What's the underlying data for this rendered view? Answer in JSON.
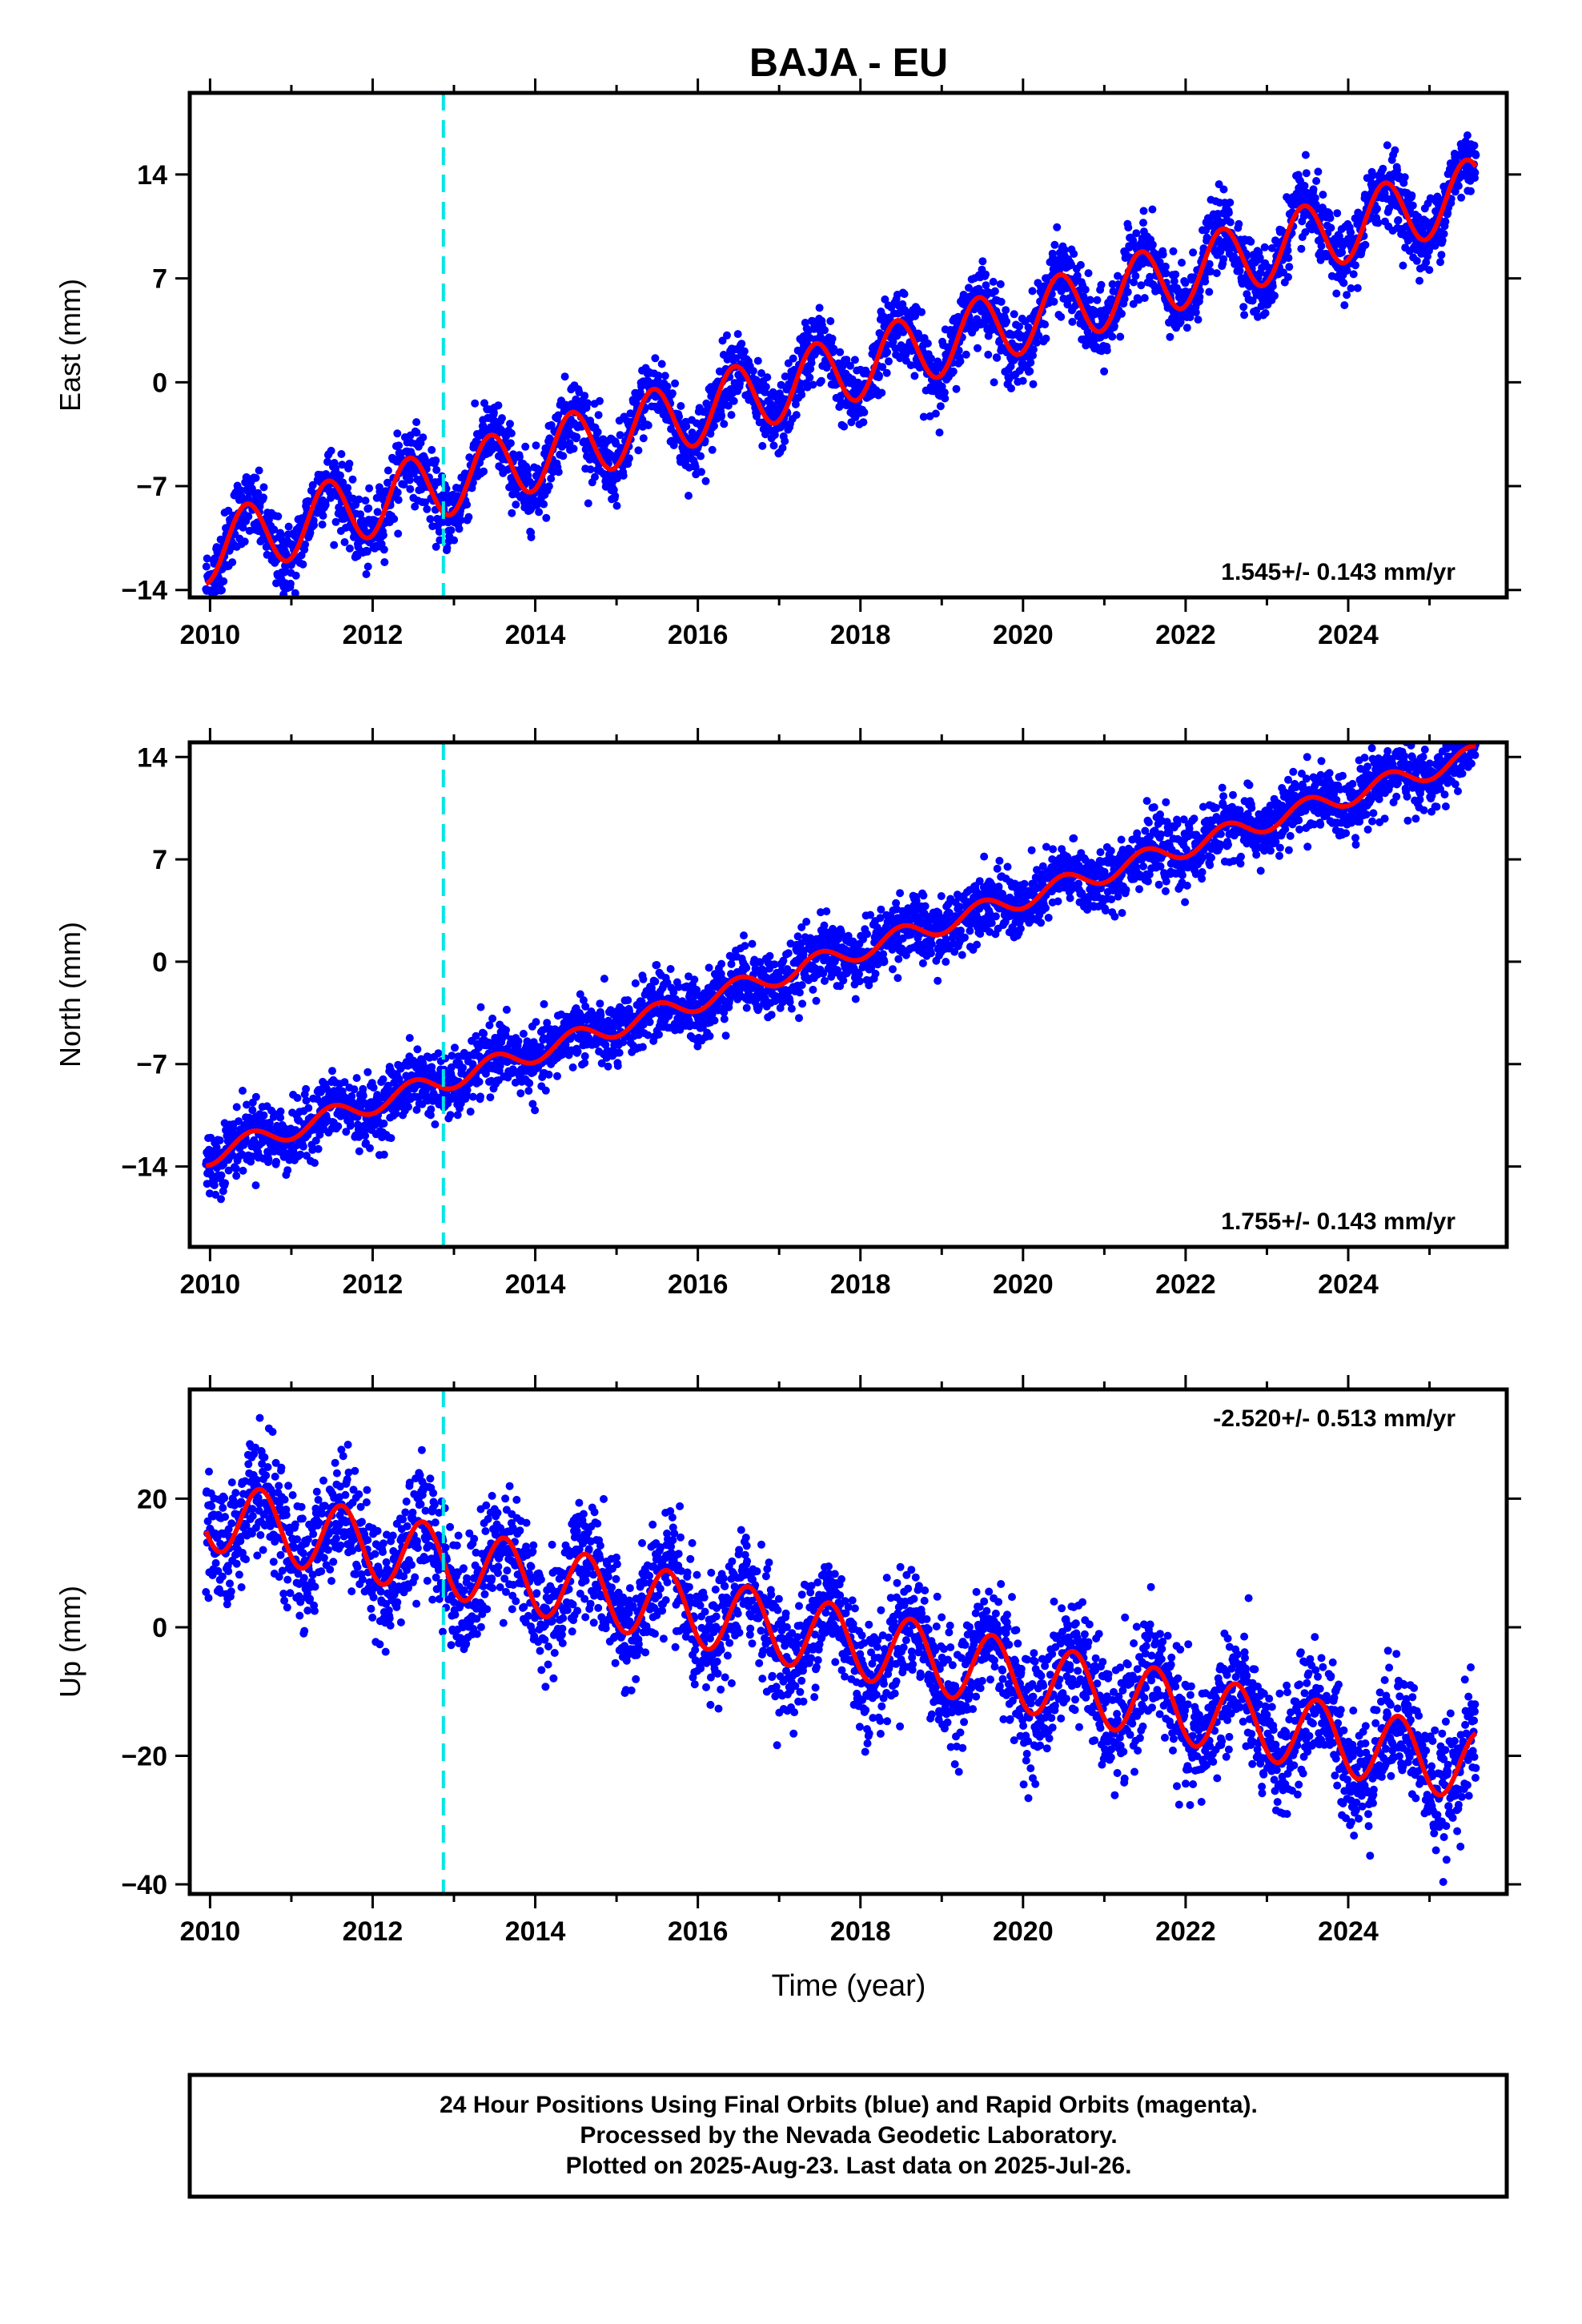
{
  "chart_data": {
    "type": "scatter",
    "title": "BAJA - EU",
    "xlabel": "Time (year)",
    "x_ticks": [
      "2010",
      "2012",
      "2014",
      "2016",
      "2018",
      "2020",
      "2022",
      "2024"
    ],
    "xlim": [
      2009.75,
      2025.95
    ],
    "event_line_x": 2012.87,
    "event_line_color": "#00e5e5",
    "point_color": "#0000ff",
    "fit_color": "#ff0000",
    "panels": [
      {
        "ylabel": "East (mm)",
        "ylim": [
          -14.5,
          19.5
        ],
        "y_ticks": [
          -14,
          -7,
          0,
          7,
          14
        ],
        "rate_text": "1.545+/- 0.143 mm/yr",
        "rate_position": "bottom-right",
        "fit": {
          "t0": 2010.0,
          "offset": -11.2,
          "rate": 1.545,
          "curve": 0.0,
          "amplitude": 2.3,
          "phase_year": 0.45,
          "noise": 1.2
        },
        "series": [
          {
            "name": "Final Orbits",
            "x": [
              2010.0,
              2011.0,
              2012.0,
              2013.0,
              2014.0,
              2015.0,
              2016.0,
              2017.0,
              2018.0,
              2019.0,
              2020.0,
              2021.0,
              2022.0,
              2023.0,
              2024.0,
              2025.0,
              2025.57
            ],
            "y": [
              -12.2,
              -10.6,
              -9.2,
              -7.8,
              -6.2,
              -4.6,
              -3.1,
              -1.6,
              0.0,
              1.5,
              3.1,
              4.6,
              6.2,
              7.7,
              9.3,
              10.8,
              11.6
            ]
          }
        ]
      },
      {
        "ylabel": "North (mm)",
        "ylim": [
          -19.5,
          15
        ],
        "y_ticks": [
          -14,
          -7,
          0,
          7,
          14
        ],
        "rate_text": "1.755+/- 0.143 mm/yr",
        "rate_position": "bottom-right",
        "fit": {
          "t0": 2010.0,
          "offset": -13.2,
          "rate": 1.755,
          "curve": 0.0,
          "amplitude": 0.7,
          "phase_year": 0.5,
          "noise": 1.1
        },
        "series": [
          {
            "name": "Final Orbits",
            "x": [
              2010.0,
              2011.0,
              2012.0,
              2013.0,
              2014.0,
              2015.0,
              2016.0,
              2017.0,
              2018.0,
              2019.0,
              2020.0,
              2021.0,
              2022.0,
              2023.0,
              2024.0,
              2025.0,
              2025.57
            ],
            "y": [
              -13.0,
              -11.5,
              -10.2,
              -8.6,
              -6.7,
              -4.5,
              -3.0,
              -1.8,
              0.0,
              1.8,
              3.6,
              5.2,
              7.0,
              8.9,
              10.6,
              12.3,
              13.5
            ]
          }
        ]
      },
      {
        "ylabel": "Up (mm)",
        "ylim": [
          -41.5,
          37
        ],
        "y_ticks": [
          -40,
          -20,
          0,
          20
        ],
        "rate_text": "-2.520+/- 0.513 mm/yr",
        "rate_position": "top-right",
        "fit": {
          "t0": 2010.0,
          "offset": 17.5,
          "rate": -2.52,
          "curve": 0.0,
          "amplitude": 5.5,
          "phase_year": 0.62,
          "noise": 4.5
        },
        "series": [
          {
            "name": "Final Orbits",
            "x": [
              2010.0,
              2011.0,
              2012.0,
              2013.0,
              2014.0,
              2015.0,
              2016.0,
              2017.0,
              2018.0,
              2019.0,
              2020.0,
              2021.0,
              2022.0,
              2023.0,
              2024.0,
              2025.0,
              2025.57
            ],
            "y": [
              17.5,
              15.0,
              12.5,
              10.0,
              7.4,
              4.9,
              2.4,
              -0.1,
              -2.7,
              -5.2,
              -7.7,
              -10.2,
              -12.7,
              -15.3,
              -17.8,
              -20.3,
              -21.7
            ]
          }
        ]
      }
    ]
  },
  "footer": {
    "line1": "24 Hour Positions Using Final Orbits (blue) and Rapid Orbits (magenta).",
    "line2": "Processed by the Nevada Geodetic Laboratory.",
    "line3": "Plotted on 2025-Aug-23. Last data on 2025-Jul-26."
  }
}
